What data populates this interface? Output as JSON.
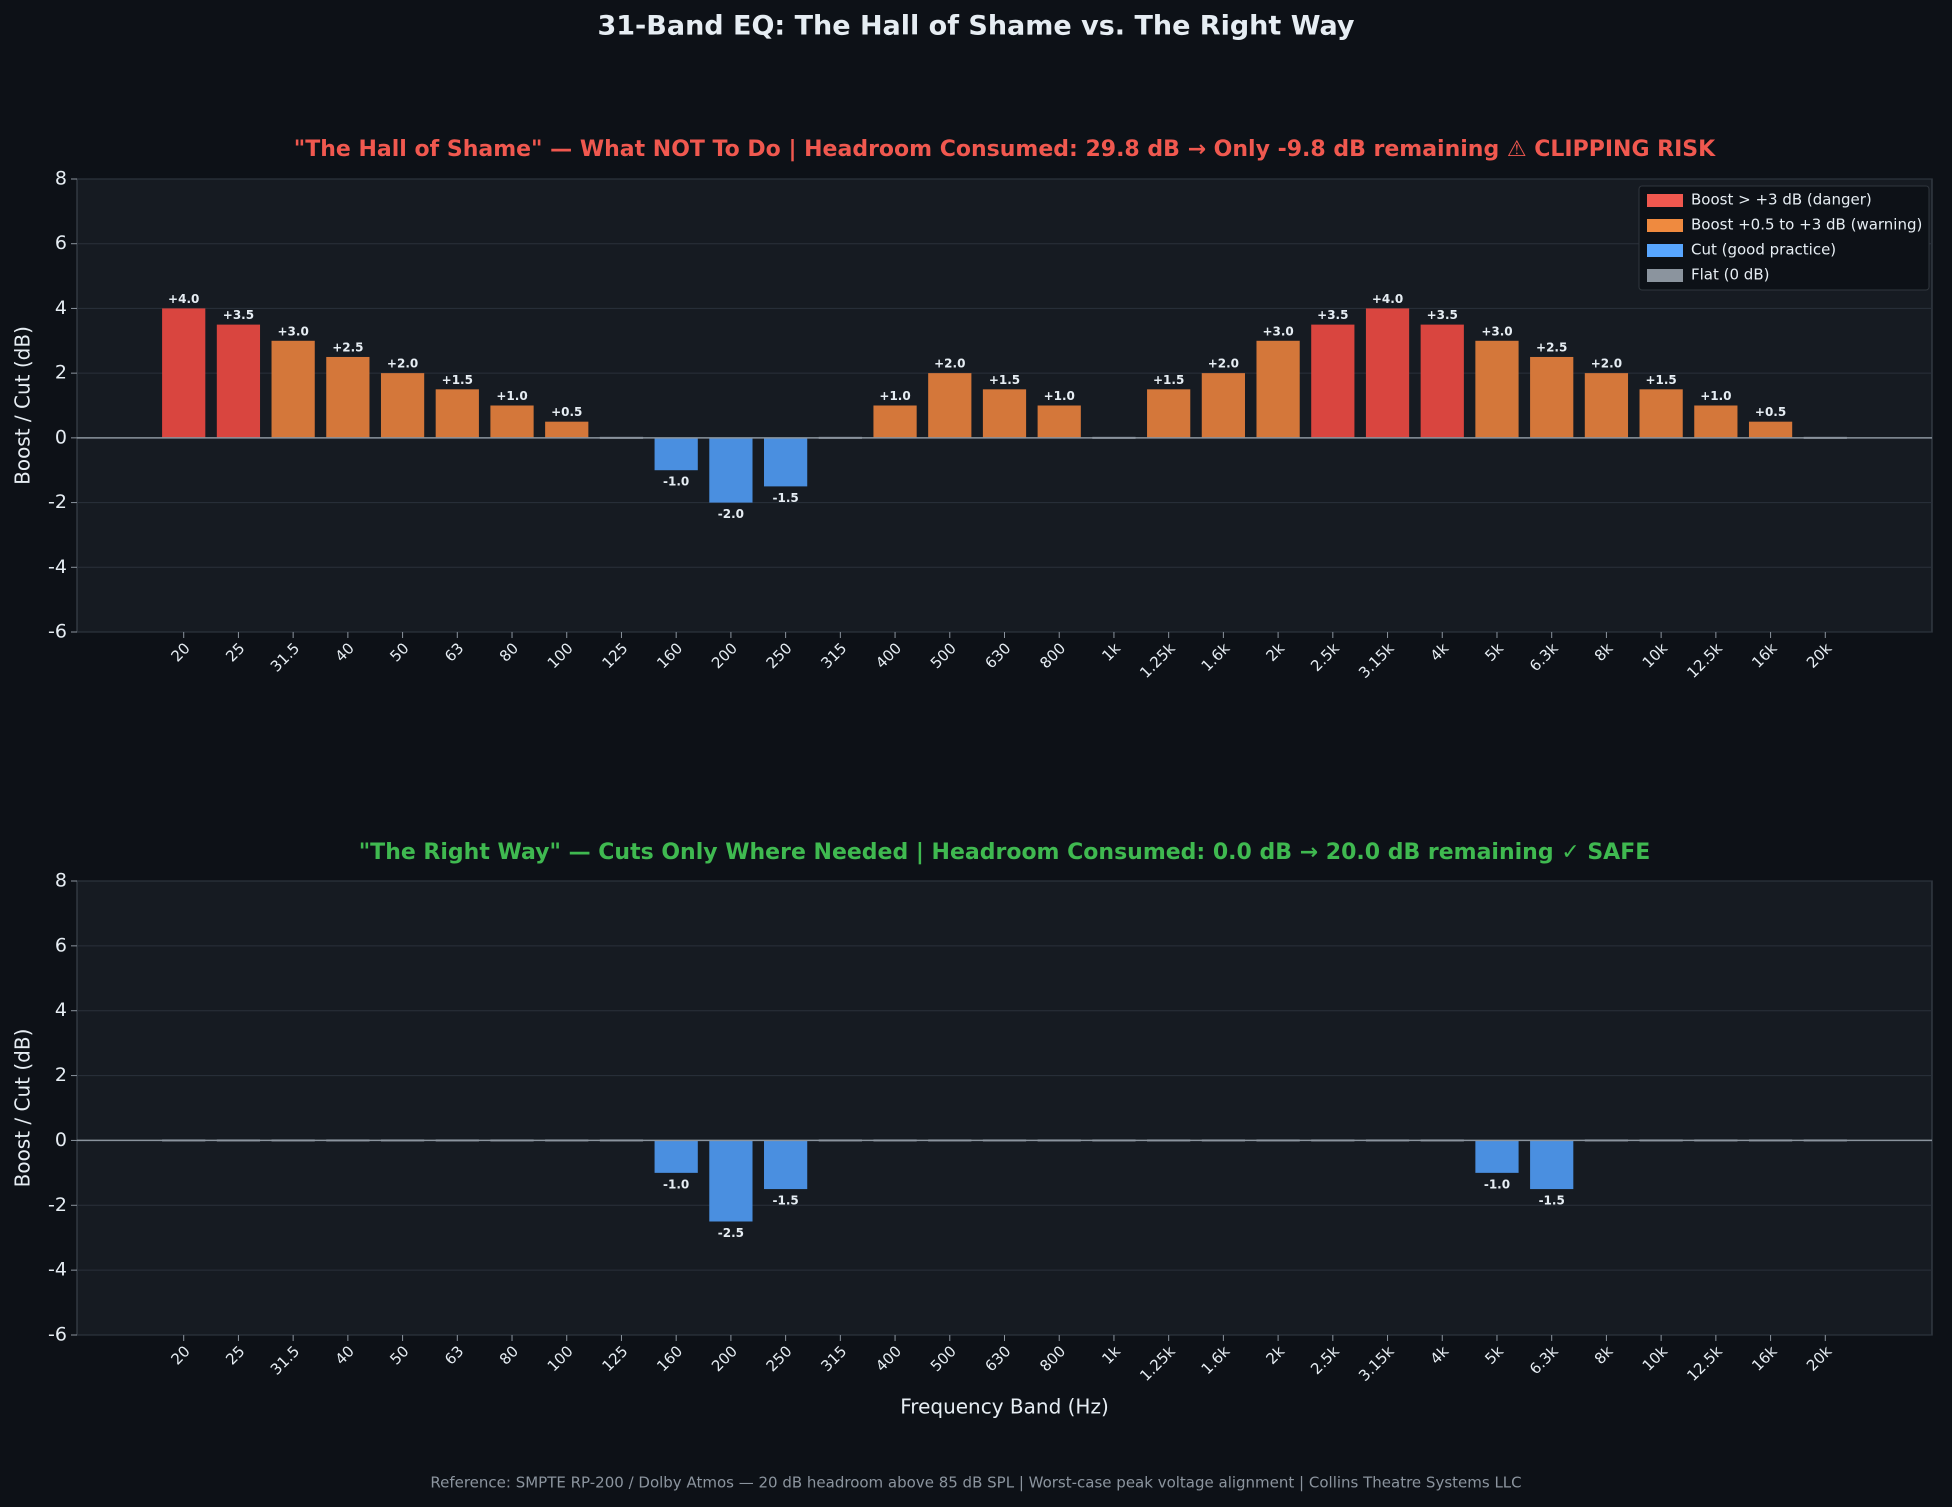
{
  "title": "31-Band EQ: The Hall of Shame vs. The Right Way",
  "footer": "Reference: SMPTE RP-200 / Dolby Atmos — 20 dB headroom above 85 dB SPL  |  Worst-case peak voltage alignment  |  Collins Theatre Systems LLC",
  "chart_data": [
    {
      "type": "bar",
      "title": "\"The Hall of Shame\" — What NOT To Do  |  Headroom Consumed: 29.8 dB  →  Only -9.8 dB remaining  ⚠ CLIPPING RISK",
      "title_color": "#f0584f",
      "y_label": "Boost / Cut (dB)",
      "categories": [
        "20",
        "25",
        "31.5",
        "40",
        "50",
        "63",
        "80",
        "100",
        "125",
        "160",
        "200",
        "250",
        "315",
        "400",
        "500",
        "630",
        "800",
        "1k",
        "1.25k",
        "1.6k",
        "2k",
        "2.5k",
        "3.15k",
        "4k",
        "5k",
        "6.3k",
        "8k",
        "10k",
        "12.5k",
        "16k",
        "20k"
      ],
      "values": [
        4,
        3.5,
        3,
        2.5,
        2,
        1.5,
        1,
        0.5,
        0,
        -1,
        -2,
        -1.5,
        0,
        1,
        2,
        1.5,
        1,
        0,
        1.5,
        2,
        3,
        3.5,
        4,
        3.5,
        3,
        2.5,
        2,
        1.5,
        1,
        0.5,
        0
      ],
      "value_labels": [
        "+4.0",
        "+3.5",
        "+3.0",
        "+2.5",
        "+2.0",
        "+1.5",
        "+1.0",
        "+0.5",
        null,
        "-1.0",
        "-2.0",
        "-1.5",
        null,
        "+1.0",
        "+2.0",
        "+1.5",
        "+1.0",
        null,
        "+1.5",
        "+2.0",
        "+3.0",
        "+3.5",
        "+4.0",
        "+3.5",
        "+3.0",
        "+2.5",
        "+2.0",
        "+1.5",
        "+1.0",
        "+0.5",
        null
      ],
      "colors": [
        "#d9453f",
        "#d9453f",
        "#d4773a",
        "#d4773a",
        "#d4773a",
        "#d4773a",
        "#d4773a",
        "#d4773a",
        "#8b949e",
        "#4a8fe0",
        "#4a8fe0",
        "#4a8fe0",
        "#8b949e",
        "#d4773a",
        "#d4773a",
        "#d4773a",
        "#d4773a",
        "#8b949e",
        "#d4773a",
        "#d4773a",
        "#d4773a",
        "#d9453f",
        "#d9453f",
        "#d9453f",
        "#d4773a",
        "#d4773a",
        "#d4773a",
        "#d4773a",
        "#d4773a",
        "#d4773a",
        "#8b949e"
      ],
      "legend": [
        {
          "name": "Boost > +3 dB (danger)",
          "color": "#f0584f"
        },
        {
          "name": "Boost +0.5 to +3 dB (warning)",
          "color": "#ef8a3f"
        },
        {
          "name": "Cut (good practice)",
          "color": "#58a6ff"
        },
        {
          "name": "Flat (0 dB)",
          "color": "#8b949e"
        }
      ],
      "legend_loc": "upper right",
      "ylim": [
        -6,
        8
      ],
      "yticks": [
        -6,
        -4,
        -2,
        0,
        2,
        4,
        6,
        8
      ],
      "grid": true
    },
    {
      "type": "bar",
      "title": "\"The Right Way\" — Cuts Only Where Needed  |  Headroom Consumed: 0.0 dB  →  20.0 dB remaining  ✓ SAFE",
      "title_color": "#3fb950",
      "y_label": "Boost / Cut (dB)",
      "x_label": "Frequency Band (Hz)",
      "categories": [
        "20",
        "25",
        "31.5",
        "40",
        "50",
        "63",
        "80",
        "100",
        "125",
        "160",
        "200",
        "250",
        "315",
        "400",
        "500",
        "630",
        "800",
        "1k",
        "1.25k",
        "1.6k",
        "2k",
        "2.5k",
        "3.15k",
        "4k",
        "5k",
        "6.3k",
        "8k",
        "10k",
        "12.5k",
        "16k",
        "20k"
      ],
      "values": [
        0,
        0,
        0,
        0,
        0,
        0,
        0,
        0,
        0,
        -1,
        -2.5,
        -1.5,
        0,
        0,
        0,
        0,
        0,
        0,
        0,
        0,
        0,
        0,
        0,
        0,
        -1,
        -1.5,
        0,
        0,
        0,
        0,
        0
      ],
      "value_labels": [
        null,
        null,
        null,
        null,
        null,
        null,
        null,
        null,
        null,
        "-1.0",
        "-2.5",
        "-1.5",
        null,
        null,
        null,
        null,
        null,
        null,
        null,
        null,
        null,
        null,
        null,
        null,
        "-1.0",
        "-1.5",
        null,
        null,
        null,
        null,
        null
      ],
      "colors": [
        "#8b949e",
        "#8b949e",
        "#8b949e",
        "#8b949e",
        "#8b949e",
        "#8b949e",
        "#8b949e",
        "#8b949e",
        "#8b949e",
        "#4a8fe0",
        "#4a8fe0",
        "#4a8fe0",
        "#8b949e",
        "#8b949e",
        "#8b949e",
        "#8b949e",
        "#8b949e",
        "#8b949e",
        "#8b949e",
        "#8b949e",
        "#8b949e",
        "#8b949e",
        "#8b949e",
        "#8b949e",
        "#4a8fe0",
        "#4a8fe0",
        "#8b949e",
        "#8b949e",
        "#8b949e",
        "#8b949e",
        "#8b949e"
      ],
      "ylim": [
        -6,
        8
      ],
      "yticks": [
        -6,
        -4,
        -2,
        0,
        2,
        4,
        6,
        8
      ],
      "grid": true
    }
  ]
}
